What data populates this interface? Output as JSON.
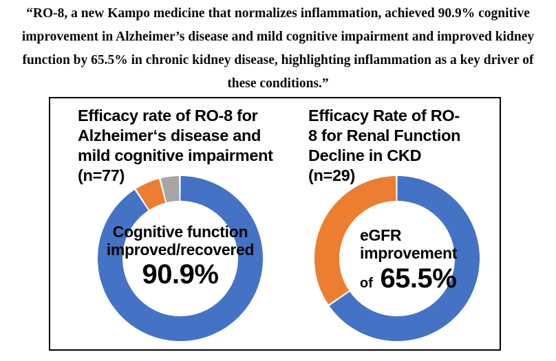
{
  "quote": {
    "lines": [
      "“RO-8, a new Kampo medicine that normalizes inflammation, achieved 90.9% cognitive",
      "improvement in Alzheimer’s disease and mild cognitive impairment and improved kidney",
      "function by 65.5% in chronic kidney disease, highlighting inflammation as a key driver of",
      "these conditions.”"
    ]
  },
  "figure": {
    "border_color": "#000000",
    "background": "#ffffff"
  },
  "chart_data": [
    {
      "type": "pie",
      "subtype": "donut",
      "title_lines": [
        "Efficacy rate of RO-8 for",
        "Alzheimer‘s disease and",
        "mild cognitive impairment"
      ],
      "n_label": "(n=77)",
      "start_angle_deg": 0,
      "direction": "clockwise",
      "legend": "none",
      "segments": [
        {
          "label": "Cognitive function improved/recovered",
          "value": 90.9,
          "color": "#4472C4"
        },
        {
          "label": "",
          "value": 5.2,
          "color": "#ED7D31"
        },
        {
          "label": "",
          "value": 3.9,
          "color": "#A6A6A6"
        }
      ],
      "center_label_lines": [
        "Cognitive function",
        "improved/recovered"
      ],
      "center_value": "90.9%"
    },
    {
      "type": "pie",
      "subtype": "donut",
      "title_lines": [
        "Efficacy Rate of RO-",
        "8 for Renal Function",
        "Decline in CKD"
      ],
      "n_label": "(n=29)",
      "start_angle_deg": 0,
      "direction": "clockwise",
      "legend": "none",
      "segments": [
        {
          "label": "eGFR improvement",
          "value": 65.5,
          "color": "#4472C4"
        },
        {
          "label": "",
          "value": 34.5,
          "color": "#ED7D31"
        }
      ],
      "center_label_lines": [
        "eGFR",
        "improvement"
      ],
      "center_value_prefix": "of ",
      "center_value": "65.5%"
    }
  ]
}
